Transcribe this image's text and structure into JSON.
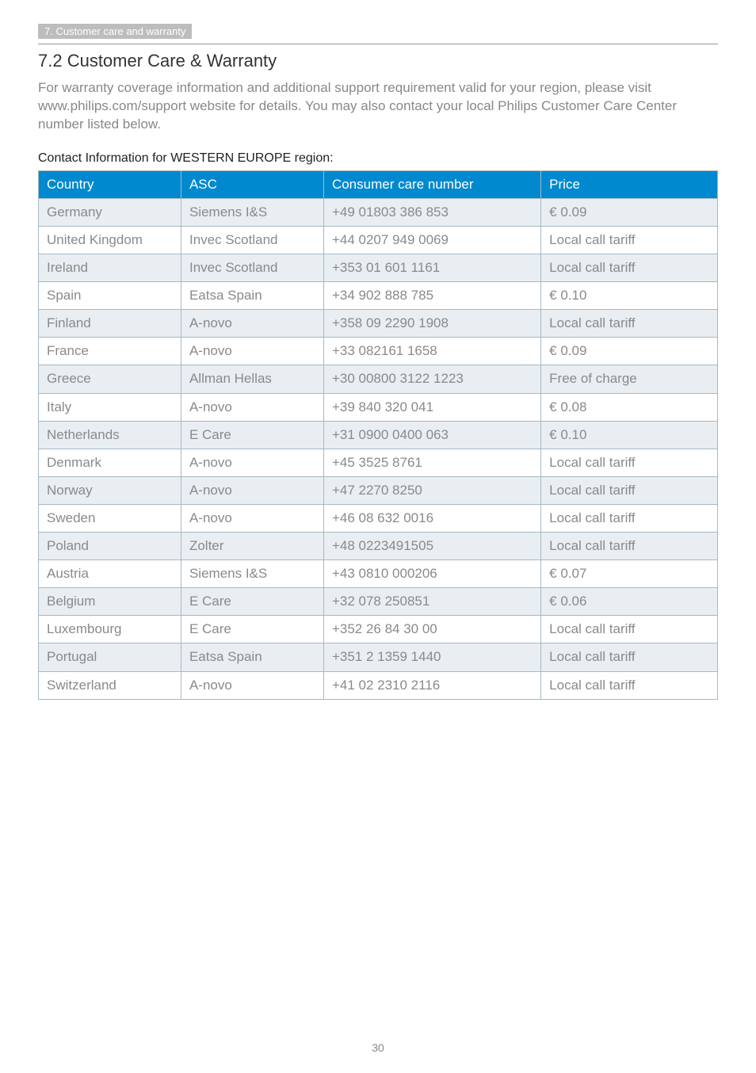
{
  "breadcrumb": "7. Customer care and warranty",
  "section_title": "7.2  Customer Care & Warranty",
  "intro_text": "For warranty coverage information and additional support requirement valid for your region, please visit www.philips.com/support website for details.  You may also contact your local Philips Customer Care Center number listed below.",
  "table_title": "Contact Information for WESTERN EUROPE region:",
  "columns": {
    "country": "Country",
    "asc": "ASC",
    "number": "Consumer care number",
    "price": "Price"
  },
  "rows": [
    {
      "country": "Germany",
      "asc": "Siemens I&S",
      "number": "+49 01803 386 853",
      "price": "€ 0.09"
    },
    {
      "country": "United Kingdom",
      "asc": "Invec Scotland",
      "number": "+44 0207 949 0069",
      "price": "Local call tariff"
    },
    {
      "country": "Ireland",
      "asc": "Invec Scotland",
      "number": "+353 01 601 1161",
      "price": "Local call tariff"
    },
    {
      "country": "Spain",
      "asc": "Eatsa Spain",
      "number": "+34 902 888 785",
      "price": "€ 0.10"
    },
    {
      "country": "Finland",
      "asc": "A-novo",
      "number": "+358 09 2290 1908",
      "price": "Local call tariff"
    },
    {
      "country": "France",
      "asc": "A-novo",
      "number": "+33 082161 1658",
      "price": "€ 0.09"
    },
    {
      "country": "Greece",
      "asc": "Allman Hellas",
      "number": "+30 00800 3122 1223",
      "price": "Free of charge"
    },
    {
      "country": "Italy",
      "asc": "A-novo",
      "number": "+39 840 320 041",
      "price": "€ 0.08"
    },
    {
      "country": "Netherlands",
      "asc": "E Care",
      "number": "+31 0900 0400 063",
      "price": "€ 0.10"
    },
    {
      "country": "Denmark",
      "asc": "A-novo",
      "number": "+45 3525 8761",
      "price": "Local call tariff"
    },
    {
      "country": "Norway",
      "asc": "A-novo",
      "number": "+47 2270 8250",
      "price": "Local call tariff"
    },
    {
      "country": "Sweden",
      "asc": "A-novo",
      "number": "+46 08 632 0016",
      "price": "Local call tariff"
    },
    {
      "country": "Poland",
      "asc": "Zolter",
      "number": "+48 0223491505",
      "price": "Local call tariff"
    },
    {
      "country": "Austria",
      "asc": "Siemens I&S",
      "number": "+43 0810 000206",
      "price": "€ 0.07"
    },
    {
      "country": "Belgium",
      "asc": "E Care",
      "number": "+32 078 250851",
      "price": "€ 0.06"
    },
    {
      "country": "Luxembourg",
      "asc": "E Care",
      "number": "+352 26 84 30 00",
      "price": "Local call tariff"
    },
    {
      "country": "Portugal",
      "asc": "Eatsa Spain",
      "number": "+351 2 1359 1440",
      "price": "Local call tariff"
    },
    {
      "country": "Switzerland",
      "asc": "A-novo",
      "number": "+41 02 2310 2116",
      "price": "Local call tariff"
    }
  ],
  "shaded_row_indices": [
    0,
    2,
    4,
    6,
    8,
    10,
    12,
    14,
    16
  ],
  "page_number": "30",
  "colors": {
    "header_bg": "#0089cf",
    "header_text": "#ffffff",
    "cell_border": "#a7b8c4",
    "row_shade": "#e9eef2",
    "body_text_muted": "#8a8a8a",
    "breadcrumb_bg": "#bdbdbd"
  }
}
